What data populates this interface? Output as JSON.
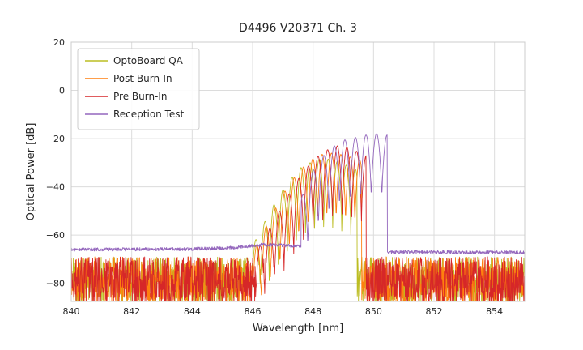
{
  "chart_data": {
    "type": "line",
    "title": "D4496 V20371 Ch. 3",
    "xlabel": "Wavelength [nm]",
    "ylabel": "Optical Power [dB]",
    "xlim": [
      840,
      855
    ],
    "ylim": [
      -87.5,
      20
    ],
    "xticks": [
      840,
      842,
      844,
      846,
      848,
      850,
      852,
      854
    ],
    "xtick_labels": [
      "840",
      "842",
      "844",
      "846",
      "848",
      "850",
      "852",
      "854"
    ],
    "yticks": [
      20,
      0,
      -20,
      -40,
      -60,
      -80
    ],
    "ytick_labels": [
      "20",
      "0",
      "−20",
      "−40",
      "−60",
      "−80"
    ],
    "grid": true,
    "legend_position": "upper-left",
    "sample_step_nm": 0.01,
    "colors": {
      "grid": "#dcdcdc",
      "spine": "#cccccc",
      "text": "#262626",
      "legend_border": "#cccccc",
      "legend_bg": "#ffffff"
    },
    "series": [
      {
        "name": "OptoBoard QA",
        "color": "#bcbd22",
        "seed": 101,
        "noise": {
          "type": "uniform",
          "min_db": -89,
          "max_db": -69
        },
        "signal": {
          "start_nm": 845.7,
          "end_nm": 849.45,
          "envelope": [
            [
              845.7,
              -72
            ],
            [
              846.1,
              -62
            ],
            [
              846.5,
              -52
            ],
            [
              846.9,
              -43
            ],
            [
              847.3,
              -36
            ],
            [
              847.6,
              -32
            ],
            [
              847.9,
              -30
            ],
            [
              848.2,
              -28.5
            ],
            [
              848.5,
              -28.5
            ],
            [
              848.8,
              -29.5
            ],
            [
              849.1,
              -31
            ],
            [
              849.45,
              -33
            ]
          ],
          "mode_spacing_nm": 0.3,
          "mode_phase_nm": 848.2,
          "valley_depth_db": 28,
          "peak_sharpness": 0.35
        }
      },
      {
        "name": "Post Burn-In",
        "color": "#ff7f0e",
        "seed": 202,
        "noise": {
          "type": "uniform",
          "min_db": -89,
          "max_db": -69
        },
        "signal": {
          "start_nm": 845.9,
          "end_nm": 849.6,
          "envelope": [
            [
              845.9,
              -70
            ],
            [
              846.3,
              -60
            ],
            [
              846.7,
              -50
            ],
            [
              847.1,
              -41
            ],
            [
              847.5,
              -34
            ],
            [
              847.9,
              -29
            ],
            [
              848.3,
              -26.5
            ],
            [
              848.6,
              -26
            ],
            [
              848.9,
              -26.5
            ],
            [
              849.2,
              -27.5
            ],
            [
              849.6,
              -29
            ]
          ],
          "mode_spacing_nm": 0.31,
          "mode_phase_nm": 848.3,
          "valley_depth_db": 28,
          "peak_sharpness": 0.35
        }
      },
      {
        "name": "Pre Burn-In",
        "color": "#d62728",
        "seed": 303,
        "noise": {
          "type": "uniform",
          "min_db": -89,
          "max_db": -69
        },
        "signal": {
          "start_nm": 846.0,
          "end_nm": 849.75,
          "envelope": [
            [
              846.0,
              -70
            ],
            [
              846.4,
              -61
            ],
            [
              846.8,
              -52
            ],
            [
              847.2,
              -43
            ],
            [
              847.6,
              -35
            ],
            [
              848.0,
              -29
            ],
            [
              848.4,
              -25
            ],
            [
              848.8,
              -23
            ],
            [
              849.1,
              -23.5
            ],
            [
              849.4,
              -25
            ],
            [
              849.75,
              -27
            ]
          ],
          "mode_spacing_nm": 0.32,
          "mode_phase_nm": 848.8,
          "valley_depth_db": 28,
          "peak_sharpness": 0.35
        }
      },
      {
        "name": "Reception Test",
        "color": "#9467bd",
        "seed": 404,
        "baseline": {
          "anchors": [
            [
              840,
              -66
            ],
            [
              844,
              -65.8
            ],
            [
              845.5,
              -65.2
            ],
            [
              846.3,
              -64
            ],
            [
              847.0,
              -64.2
            ],
            [
              847.6,
              -64.8
            ],
            [
              850.6,
              -67
            ],
            [
              855,
              -67.2
            ]
          ],
          "noise_db": 0.7
        },
        "signal": {
          "start_nm": 847.6,
          "end_nm": 850.45,
          "envelope": [
            [
              847.6,
              -45
            ],
            [
              848.0,
              -33
            ],
            [
              848.35,
              -27
            ],
            [
              848.7,
              -23
            ],
            [
              849.05,
              -20.5
            ],
            [
              849.4,
              -19.5
            ],
            [
              849.75,
              -18.5
            ],
            [
              850.1,
              -18
            ],
            [
              850.45,
              -18.5
            ]
          ],
          "mode_spacing_nm": 0.35,
          "mode_phase_nm": 850.1,
          "valley_depth_db": 27,
          "peak_sharpness": 0.35
        }
      }
    ]
  }
}
